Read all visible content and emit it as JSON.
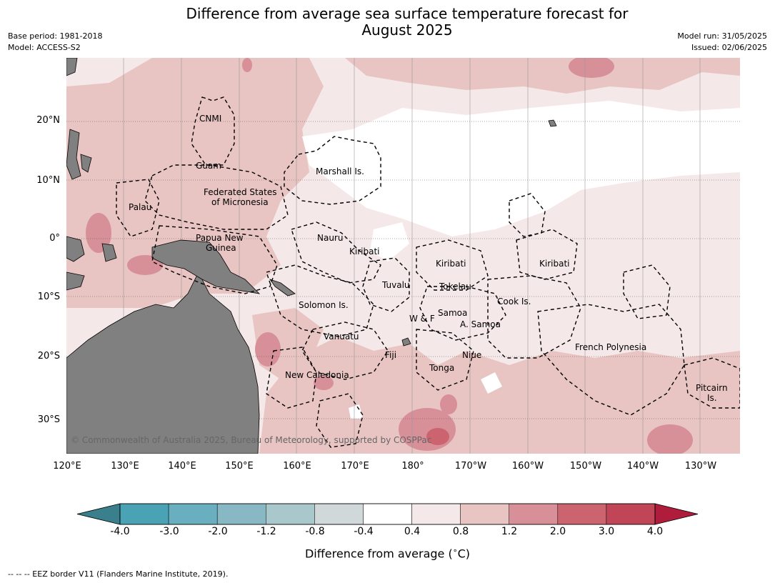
{
  "title_line1": "Difference from average sea surface temperature forecast for",
  "title_line2": "August 2025",
  "base_period": "Base period: 1981-2018",
  "model": "Model: ACCESS-S2",
  "model_run": "Model run: 31/05/2025",
  "issued": "Issued: 02/06/2025",
  "lat_labels": [
    "20°N",
    "10°N",
    "0°",
    "10°S",
    "20°S",
    "30°S"
  ],
  "lon_labels": [
    "120°E",
    "130°E",
    "140°E",
    "150°E",
    "160°E",
    "170°E",
    "180°",
    "170°W",
    "160°W",
    "150°W",
    "140°W",
    "130°W"
  ],
  "places": {
    "cnmi": "CNMI",
    "guam": "Guam",
    "marshall": "Marshall Is.",
    "fsm1": "Federated States",
    "fsm2": "of Micronesia",
    "palau": "Palau",
    "png1": "Papua New",
    "png2": "Guinea",
    "nauru": "Nauru",
    "kiribati_w": "Kiribati",
    "kiribati_c": "Kiribati",
    "kiribati_e": "Kiribati",
    "tuvalu": "Tuvalu",
    "tokelau": "Tokelau",
    "cook": "Cook Is.",
    "solomon": "Solomon Is.",
    "samoa": "Samoa",
    "wf": "W & F",
    "asamoa": "A. Samoa",
    "vanuatu": "Vanuatu",
    "fiji": "Fiji",
    "niue": "Niue",
    "tonga": "Tonga",
    "frpoly": "French Polynesia",
    "newcal": "New Caledonia",
    "pitcairn1": "Pitcairn",
    "pitcairn2": "Is."
  },
  "copyright": "© Commonwealth of Australia 2025, Bureau of Meteorology, supported by COSPPac",
  "colorbar": {
    "ticks": [
      "-4.0",
      "-3.0",
      "-2.0",
      "-1.2",
      "-0.8",
      "-0.4",
      "0.4",
      "0.8",
      "1.2",
      "2.0",
      "3.0",
      "4.0"
    ],
    "colors": [
      "#3a7f8c",
      "#4aa3b5",
      "#6aafbf",
      "#88b8c4",
      "#a8c8cc",
      "#d0d8d9",
      "#ffffff",
      "#f5e8e8",
      "#e8c4c2",
      "#d78f98",
      "#cc6470",
      "#c04556",
      "#b01c3c"
    ],
    "label": "Difference from average (°C)",
    "label_prefix": "Difference from average (",
    "label_unit": "°C",
    "label_suffix": ")"
  },
  "footer": "--  --  -- EEZ border V11 (Flanders Marine Institute, 2019).",
  "colors": {
    "land": "#808080",
    "anomaly_04_08": "#f5e8e8",
    "anomaly_08_12": "#e8c4c2",
    "anomaly_12_20": "#d78f98",
    "anomaly_20_30": "#cc6470",
    "neutral": "#ffffff"
  }
}
